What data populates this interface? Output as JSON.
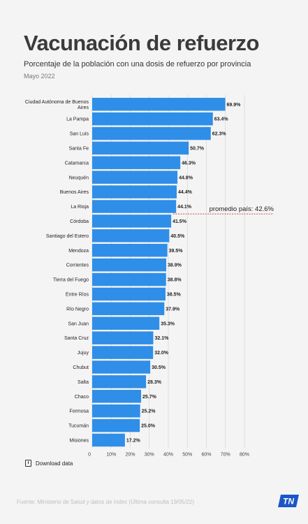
{
  "header": {
    "title": "Vacunación de refuerzo",
    "subtitle": "Porcentaje de la población con una dosis de refuerzo por provincia",
    "date": "Mayo 2022"
  },
  "footer": {
    "download_label": "Download data",
    "source": "Fuente: Ministerio de Salud y datos de Indec (Última consulta 19/05/22)",
    "logo_text": "TN"
  },
  "colors": {
    "bar": "#2f8ee8",
    "reference_line": "#c0392b",
    "grid": "#cfcfcf"
  },
  "icons": {
    "download": "download-icon"
  },
  "chart_data": {
    "type": "bar",
    "orientation": "horizontal",
    "categories": [
      "Ciudad Autónoma de Buenos Aires",
      "La Pampa",
      "San Luis",
      "Santa Fe",
      "Catamarca",
      "Neuquén",
      "Buenos Aires",
      "La Rioja",
      "Córdoba",
      "Santiago del Estero",
      "Mendoza",
      "Corrientes",
      "Tierra del Fuego",
      "Entre Ríos",
      "Río Negro",
      "San Juan",
      "Santa Cruz",
      "Jujuy",
      "Chubut",
      "Salta",
      "Chaco",
      "Formosa",
      "Tucumán",
      "Misiones"
    ],
    "values": [
      69.9,
      63.4,
      62.3,
      50.7,
      46.3,
      44.8,
      44.4,
      44.1,
      41.5,
      40.5,
      39.5,
      38.9,
      38.8,
      38.5,
      37.9,
      35.3,
      32.1,
      32.0,
      30.5,
      28.3,
      25.7,
      25.2,
      25.0,
      17.2
    ],
    "value_labels": [
      "69.9%",
      "63.4%",
      "62.3%",
      "50.7%",
      "46.3%",
      "44.8%",
      "44.4%",
      "44.1%",
      "41.5%",
      "40.5%",
      "39.5%",
      "38.9%",
      "38.8%",
      "38.5%",
      "37.9%",
      "35.3%",
      "32.1%",
      "32.0%",
      "30.5%",
      "28.3%",
      "25.7%",
      "25.2%",
      "25.0%",
      "17.2%"
    ],
    "xlim": [
      0,
      80
    ],
    "xticks": [
      0,
      10,
      20,
      30,
      40,
      50,
      60,
      70,
      80
    ],
    "xtick_labels": [
      "0",
      "10%",
      "20%",
      "30%",
      "40%",
      "50%",
      "60%",
      "70%",
      "80%"
    ],
    "grid": true,
    "reference_line": {
      "value": 42.6,
      "label": "promedio país: 42.6%"
    }
  }
}
